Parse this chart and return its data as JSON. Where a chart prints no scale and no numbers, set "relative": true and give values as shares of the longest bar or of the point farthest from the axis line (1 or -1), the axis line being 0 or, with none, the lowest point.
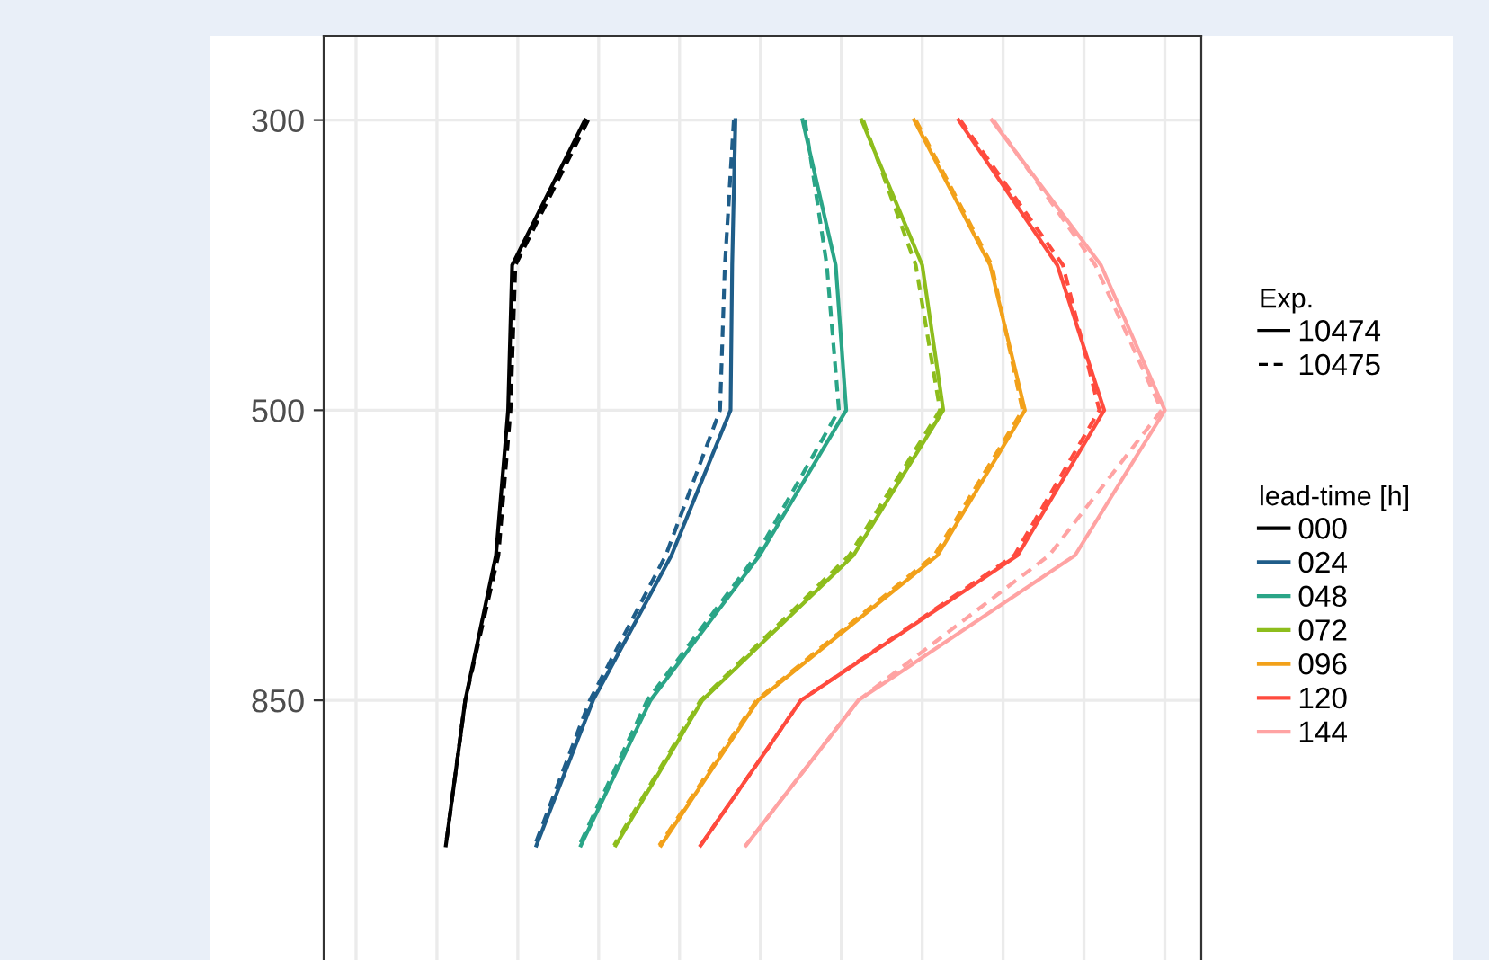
{
  "chart_data": {
    "type": "line",
    "relative": true,
    "orientation": "horizontal",
    "grid": true,
    "legend": "right",
    "tick_labels": "y",
    "categories": [
      "300",
      null,
      "500",
      null,
      "850",
      null
    ],
    "legend_title": "lead-time [h]",
    "annotations": [
      "Exp.",
      "10474",
      "10475"
    ],
    "series": [
      {
        "name": "000",
        "color": "#000000",
        "line_style": "solid",
        "values": [
          0.283,
          0.193,
          0.188,
          0.173,
          0.135,
          0.111
        ]
      },
      {
        "color": "#000000",
        "line_style": "dashed",
        "values": [
          0.287,
          0.197,
          0.191,
          0.176,
          0.135,
          0.111
        ]
      },
      {
        "name": "024",
        "color": "#1f5d89",
        "line_style": "solid",
        "values": [
          0.469,
          0.465,
          0.463,
          0.39,
          0.293,
          0.223
        ]
      },
      {
        "color": "#1f5d89",
        "line_style": "dashed",
        "values": [
          0.467,
          0.456,
          0.45,
          0.383,
          0.289,
          0.221
        ]
      },
      {
        "name": "048",
        "color": "#2aa587",
        "line_style": "solid",
        "values": [
          0.552,
          0.593,
          0.606,
          0.499,
          0.364,
          0.278
        ]
      },
      {
        "color": "#2aa587",
        "line_style": "dashed",
        "values": [
          0.555,
          0.582,
          0.597,
          0.495,
          0.36,
          0.276
        ]
      },
      {
        "name": "072",
        "color": "#8dbd1c",
        "line_style": "solid",
        "values": [
          0.625,
          0.7,
          0.726,
          0.615,
          0.428,
          0.321
        ]
      },
      {
        "color": "#8dbd1c",
        "line_style": "dashed",
        "values": [
          0.627,
          0.692,
          0.722,
          0.61,
          0.426,
          0.319
        ]
      },
      {
        "name": "096",
        "color": "#f2a11a",
        "line_style": "solid",
        "values": [
          0.69,
          0.784,
          0.827,
          0.719,
          0.497,
          0.377
        ]
      },
      {
        "color": "#f2a11a",
        "line_style": "dashed",
        "values": [
          0.692,
          0.786,
          0.824,
          0.715,
          0.495,
          0.375
        ]
      },
      {
        "name": "120",
        "color": "#ff4b3e",
        "line_style": "solid",
        "values": [
          0.745,
          0.867,
          0.925,
          0.818,
          0.55,
          0.426
        ]
      },
      {
        "color": "#ff4b3e",
        "line_style": "dashed",
        "values": [
          0.747,
          0.874,
          0.919,
          0.814,
          0.55,
          0.426
        ]
      },
      {
        "name": "144",
        "color": "#ffa3a3",
        "line_style": "solid",
        "values": [
          0.786,
          0.921,
          1.0,
          0.889,
          0.621,
          0.482
        ]
      },
      {
        "color": "#ffa3a3",
        "line_style": "dashed",
        "values": [
          0.788,
          0.914,
          0.996,
          0.857,
          0.621,
          0.482
        ]
      }
    ]
  }
}
